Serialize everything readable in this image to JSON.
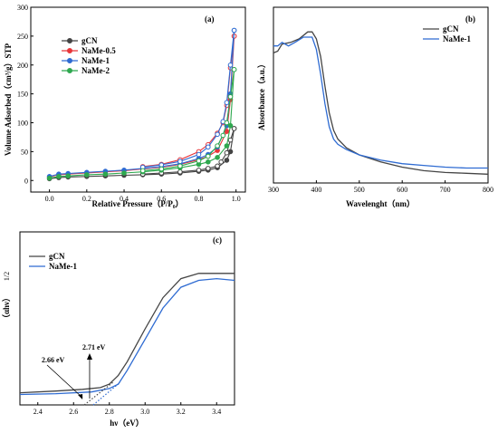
{
  "colors": {
    "gCN": "#444444",
    "NaMe-0.5": "#e8363a",
    "NaMe-1": "#2e6bd2",
    "NaMe-2": "#2fa84f"
  },
  "chart_data": [
    {
      "panel": "(a)",
      "type": "line",
      "xlabel": "Relative Pressure（P/P₀）",
      "ylabel": "Volume Adsorbed（cm³/g）STP",
      "xlim": [
        -0.1,
        1.05
      ],
      "ylim": [
        -20,
        300
      ],
      "xticks": [
        "0.0",
        "0.2",
        "0.4",
        "0.6",
        "0.8",
        "1.0"
      ],
      "yticks": [
        "0",
        "50",
        "100",
        "150",
        "200",
        "250",
        "300"
      ],
      "legend": "top-left",
      "series": [
        {
          "name": "gCN",
          "adsorption": [
            [
              0.0,
              3
            ],
            [
              0.05,
              5
            ],
            [
              0.1,
              6
            ],
            [
              0.2,
              7
            ],
            [
              0.3,
              8
            ],
            [
              0.4,
              9
            ],
            [
              0.5,
              10
            ],
            [
              0.6,
              11
            ],
            [
              0.7,
              13
            ],
            [
              0.8,
              16
            ],
            [
              0.85,
              18
            ],
            [
              0.9,
              22
            ],
            [
              0.95,
              35
            ],
            [
              0.97,
              50
            ],
            [
              0.99,
              90
            ]
          ],
          "desorption": [
            [
              0.99,
              90
            ],
            [
              0.97,
              70
            ],
            [
              0.95,
              48
            ],
            [
              0.92,
              32
            ],
            [
              0.9,
              25
            ],
            [
              0.85,
              21
            ],
            [
              0.8,
              18
            ],
            [
              0.7,
              15
            ],
            [
              0.6,
              13
            ],
            [
              0.5,
              11
            ]
          ]
        },
        {
          "name": "NaMe-0.5",
          "adsorption": [
            [
              0.0,
              6
            ],
            [
              0.05,
              10
            ],
            [
              0.1,
              11
            ],
            [
              0.2,
              13
            ],
            [
              0.3,
              15
            ],
            [
              0.4,
              17
            ],
            [
              0.5,
              20
            ],
            [
              0.6,
              23
            ],
            [
              0.7,
              28
            ],
            [
              0.8,
              36
            ],
            [
              0.85,
              42
            ],
            [
              0.9,
              52
            ],
            [
              0.95,
              85
            ],
            [
              0.97,
              140
            ],
            [
              0.99,
              250
            ]
          ],
          "desorption": [
            [
              0.99,
              250
            ],
            [
              0.97,
              195
            ],
            [
              0.95,
              130
            ],
            [
              0.93,
              100
            ],
            [
              0.9,
              82
            ],
            [
              0.85,
              62
            ],
            [
              0.8,
              50
            ],
            [
              0.7,
              36
            ],
            [
              0.6,
              28
            ],
            [
              0.5,
              24
            ]
          ]
        },
        {
          "name": "NaMe-1",
          "adsorption": [
            [
              0.0,
              7
            ],
            [
              0.05,
              11
            ],
            [
              0.1,
              12
            ],
            [
              0.2,
              14
            ],
            [
              0.3,
              16
            ],
            [
              0.4,
              18
            ],
            [
              0.5,
              21
            ],
            [
              0.6,
              24
            ],
            [
              0.7,
              29
            ],
            [
              0.8,
              38
            ],
            [
              0.85,
              45
            ],
            [
              0.9,
              58
            ],
            [
              0.95,
              95
            ],
            [
              0.97,
              150
            ],
            [
              0.99,
              260
            ]
          ],
          "desorption": [
            [
              0.99,
              260
            ],
            [
              0.97,
              200
            ],
            [
              0.95,
              135
            ],
            [
              0.93,
              102
            ],
            [
              0.9,
              80
            ],
            [
              0.85,
              58
            ],
            [
              0.8,
              45
            ],
            [
              0.7,
              33
            ],
            [
              0.6,
              27
            ],
            [
              0.5,
              23
            ]
          ]
        },
        {
          "name": "NaMe-2",
          "adsorption": [
            [
              0.0,
              4
            ],
            [
              0.05,
              7
            ],
            [
              0.1,
              8
            ],
            [
              0.2,
              10
            ],
            [
              0.3,
              11
            ],
            [
              0.4,
              13
            ],
            [
              0.5,
              15
            ],
            [
              0.6,
              18
            ],
            [
              0.7,
              22
            ],
            [
              0.8,
              28
            ],
            [
              0.85,
              32
            ],
            [
              0.9,
              40
            ],
            [
              0.95,
              60
            ],
            [
              0.97,
              95
            ],
            [
              0.99,
              192
            ]
          ],
          "desorption": [
            [
              0.99,
              192
            ],
            [
              0.97,
              145
            ],
            [
              0.95,
              100
            ],
            [
              0.93,
              78
            ],
            [
              0.9,
              60
            ],
            [
              0.85,
              42
            ],
            [
              0.8,
              34
            ],
            [
              0.7,
              25
            ],
            [
              0.6,
              20
            ],
            [
              0.5,
              17
            ]
          ]
        }
      ]
    },
    {
      "panel": "(b)",
      "type": "line",
      "xlabel": "Wavelenght（nm）",
      "ylabel": "Absorbance（a.u.）",
      "xlim": [
        300,
        800
      ],
      "ylim": [
        0,
        1
      ],
      "xticks": [
        "300",
        "400",
        "500",
        "600",
        "700",
        "800"
      ],
      "legend": "top-right",
      "series": [
        {
          "name": "gCN",
          "points": [
            [
              300,
              0.74
            ],
            [
              310,
              0.75
            ],
            [
              320,
              0.79
            ],
            [
              340,
              0.8
            ],
            [
              360,
              0.82
            ],
            [
              380,
              0.86
            ],
            [
              390,
              0.86
            ],
            [
              400,
              0.82
            ],
            [
              410,
              0.72
            ],
            [
              420,
              0.55
            ],
            [
              430,
              0.4
            ],
            [
              440,
              0.3
            ],
            [
              450,
              0.25
            ],
            [
              470,
              0.2
            ],
            [
              500,
              0.16
            ],
            [
              550,
              0.12
            ],
            [
              600,
              0.09
            ],
            [
              650,
              0.07
            ],
            [
              700,
              0.06
            ],
            [
              750,
              0.055
            ],
            [
              800,
              0.05
            ]
          ]
        },
        {
          "name": "NaMe-1",
          "points": [
            [
              300,
              0.78
            ],
            [
              310,
              0.78
            ],
            [
              320,
              0.8
            ],
            [
              335,
              0.78
            ],
            [
              350,
              0.8
            ],
            [
              370,
              0.83
            ],
            [
              390,
              0.83
            ],
            [
              400,
              0.76
            ],
            [
              410,
              0.62
            ],
            [
              420,
              0.45
            ],
            [
              430,
              0.32
            ],
            [
              440,
              0.25
            ],
            [
              450,
              0.22
            ],
            [
              470,
              0.19
            ],
            [
              500,
              0.16
            ],
            [
              550,
              0.13
            ],
            [
              600,
              0.11
            ],
            [
              650,
              0.1
            ],
            [
              700,
              0.09
            ],
            [
              750,
              0.085
            ],
            [
              800,
              0.085
            ]
          ]
        }
      ]
    },
    {
      "panel": "(c)",
      "type": "line",
      "xlabel": "hν（eV）",
      "ylabel": "（αhν）",
      "ylabel_exp": "1/2",
      "xlim": [
        2.3,
        3.5
      ],
      "ylim": [
        0,
        1
      ],
      "xticks": [
        "2.4",
        "2.6",
        "2.8",
        "3.0",
        "3.2",
        "3.4"
      ],
      "legend": "top-left",
      "annotations": [
        {
          "text": "2.66 eV",
          "x": 2.66
        },
        {
          "text": "2.71 eV",
          "x": 2.71
        }
      ],
      "series": [
        {
          "name": "gCN",
          "points": [
            [
              2.3,
              0.07
            ],
            [
              2.5,
              0.08
            ],
            [
              2.65,
              0.09
            ],
            [
              2.75,
              0.1
            ],
            [
              2.8,
              0.12
            ],
            [
              2.85,
              0.17
            ],
            [
              2.9,
              0.25
            ],
            [
              3.0,
              0.44
            ],
            [
              3.1,
              0.62
            ],
            [
              3.2,
              0.73
            ],
            [
              3.3,
              0.76
            ],
            [
              3.4,
              0.76
            ],
            [
              3.5,
              0.76
            ]
          ]
        },
        {
          "name": "NaMe-1",
          "points": [
            [
              2.3,
              0.06
            ],
            [
              2.5,
              0.065
            ],
            [
              2.7,
              0.075
            ],
            [
              2.8,
              0.095
            ],
            [
              2.85,
              0.12
            ],
            [
              2.9,
              0.2
            ],
            [
              3.0,
              0.38
            ],
            [
              3.1,
              0.56
            ],
            [
              3.2,
              0.68
            ],
            [
              3.3,
              0.72
            ],
            [
              3.4,
              0.73
            ],
            [
              3.5,
              0.72
            ]
          ]
        }
      ]
    }
  ]
}
